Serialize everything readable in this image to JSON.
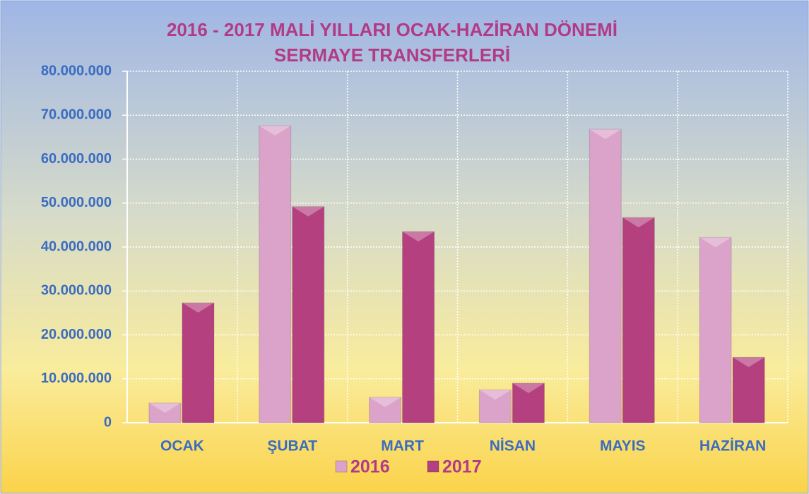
{
  "chart_data": {
    "type": "bar",
    "title": "2016 - 2017 MALİ YILLARI OCAK-HAZİRAN DÖNEMİ",
    "subtitle": "SERMAYE TRANSFERLERİ",
    "categories": [
      "OCAK",
      "ŞUBAT",
      "MART",
      "NİSAN",
      "MAYIS",
      "HAZİRAN"
    ],
    "series": [
      {
        "name": "2016",
        "color": "#dba3c9",
        "values": [
          4500000,
          67600000,
          5800000,
          7500000,
          66800000,
          42200000
        ]
      },
      {
        "name": "2017",
        "color": "#b4407f",
        "values": [
          27300000,
          49200000,
          43500000,
          9000000,
          46700000,
          14900000
        ]
      }
    ],
    "ylim": [
      0,
      80000000
    ],
    "yticks": [
      0,
      {
        "value": 10000000,
        "label": "10.000.000"
      },
      {
        "value": 20000000,
        "label": "20.000.000"
      },
      {
        "value": 30000000,
        "label": "30.000.000"
      },
      {
        "value": 40000000,
        "label": "40.000.000"
      },
      {
        "value": 50000000,
        "label": "50.000.000"
      },
      {
        "value": 60000000,
        "label": "60.000.000"
      },
      {
        "value": 70000000,
        "label": "70.000.000"
      },
      {
        "value": 80000000,
        "label": "80.000.000"
      }
    ],
    "grid": true,
    "legend": "bottom"
  }
}
